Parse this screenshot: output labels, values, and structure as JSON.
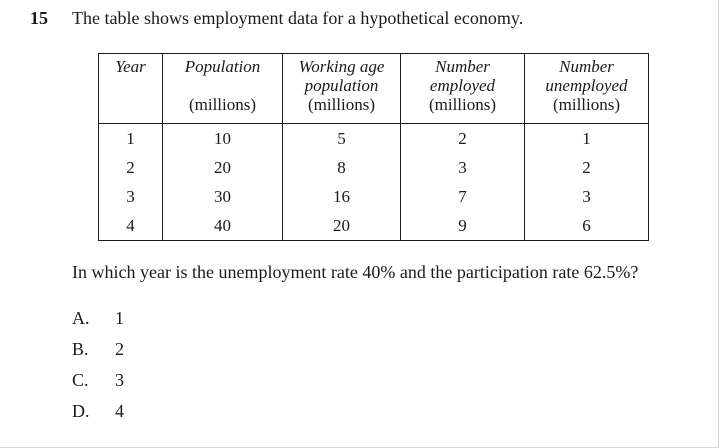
{
  "question": {
    "number": "15",
    "stem": "The table shows employment data for a hypothetical economy.",
    "prompt": "In which year is the unemployment rate 40% and the participation rate 62.5%?"
  },
  "table": {
    "headers": [
      {
        "line1": "Year",
        "line2": "",
        "line3": "",
        "unit": ""
      },
      {
        "line1": "Population",
        "line2": "",
        "line3": "",
        "unit": "(millions)"
      },
      {
        "line1": "Working age",
        "line2": "population",
        "line3": "",
        "unit": "(millions)"
      },
      {
        "line1": "Number",
        "line2": "employed",
        "line3": "",
        "unit": "(millions)"
      },
      {
        "line1": "Number",
        "line2": "unemployed",
        "line3": "",
        "unit": "(millions)"
      }
    ],
    "rows": [
      [
        "1",
        "10",
        "5",
        "2",
        "1"
      ],
      [
        "2",
        "20",
        "8",
        "3",
        "2"
      ],
      [
        "3",
        "30",
        "16",
        "7",
        "3"
      ],
      [
        "4",
        "40",
        "20",
        "9",
        "6"
      ]
    ]
  },
  "options": [
    {
      "letter": "A.",
      "text": "1"
    },
    {
      "letter": "B.",
      "text": "2"
    },
    {
      "letter": "C.",
      "text": "3"
    },
    {
      "letter": "D.",
      "text": "4"
    }
  ]
}
